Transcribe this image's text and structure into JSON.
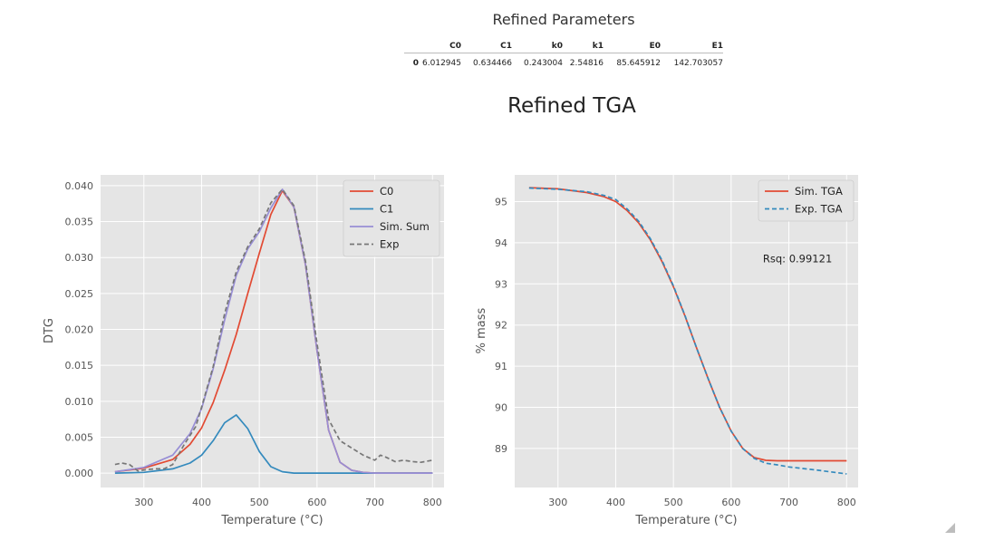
{
  "table": {
    "caption": "Refined Parameters",
    "columns": [
      "",
      "C0",
      "C1",
      "k0",
      "k1",
      "E0",
      "E1"
    ],
    "rows": [
      [
        "0",
        "6.012945",
        "0.634466",
        "0.243004",
        "2.54816",
        "85.645912",
        "142.703057"
      ]
    ]
  },
  "figure_title": "Refined TGA",
  "chart_data": [
    {
      "type": "line",
      "xlabel": "Temperature ($^\\circ$C)",
      "ylabel": "DTG",
      "xlim": [
        225,
        820
      ],
      "ylim": [
        -0.002,
        0.0415
      ],
      "xticks": [
        "300",
        "400",
        "500",
        "600",
        "700",
        "800"
      ],
      "yticks": [
        "0.000",
        "0.005",
        "0.010",
        "0.015",
        "0.020",
        "0.025",
        "0.030",
        "0.035",
        "0.040"
      ],
      "grid": true,
      "legend_position": "top-right",
      "series": [
        {
          "name": "C0",
          "color": "#e24a33",
          "style": "solid",
          "x": [
            250,
            300,
            350,
            380,
            400,
            420,
            440,
            460,
            480,
            500,
            520,
            540,
            560,
            580,
            600,
            620,
            640,
            660,
            680,
            700,
            750,
            800
          ],
          "y": [
            0.0002,
            0.0007,
            0.0019,
            0.004,
            0.0063,
            0.0098,
            0.0143,
            0.0193,
            0.025,
            0.0306,
            0.036,
            0.0393,
            0.037,
            0.029,
            0.017,
            0.006,
            0.0015,
            0.0004,
            0.0001,
            0.0,
            0.0,
            0.0
          ]
        },
        {
          "name": "C1",
          "color": "#348abd",
          "style": "solid",
          "x": [
            250,
            300,
            350,
            380,
            400,
            420,
            440,
            460,
            480,
            500,
            520,
            540,
            560,
            600,
            700,
            800
          ],
          "y": [
            0.0,
            0.0001,
            0.0006,
            0.0014,
            0.0025,
            0.0045,
            0.007,
            0.0081,
            0.0062,
            0.003,
            0.0009,
            0.0002,
            0.0,
            0.0,
            0.0,
            0.0
          ]
        },
        {
          "name": "Sim. Sum",
          "color": "#988ed5",
          "style": "solid",
          "x": [
            250,
            300,
            350,
            380,
            400,
            420,
            440,
            460,
            480,
            500,
            520,
            540,
            560,
            580,
            600,
            620,
            640,
            660,
            680,
            700,
            750,
            800
          ],
          "y": [
            0.0002,
            0.0008,
            0.0025,
            0.0055,
            0.009,
            0.0145,
            0.0213,
            0.0275,
            0.0312,
            0.0336,
            0.0369,
            0.0395,
            0.037,
            0.029,
            0.017,
            0.006,
            0.0015,
            0.0004,
            0.0001,
            0.0,
            0.0,
            0.0
          ]
        },
        {
          "name": "Exp",
          "color": "#777777",
          "style": "dashed",
          "x": [
            250,
            262,
            275,
            290,
            305,
            320,
            335,
            350,
            370,
            390,
            400,
            420,
            440,
            460,
            480,
            500,
            520,
            540,
            560,
            580,
            600,
            620,
            640,
            660,
            680,
            700,
            710,
            720,
            735,
            750,
            765,
            780,
            800
          ],
          "y": [
            0.0012,
            0.0014,
            0.0012,
            0.0003,
            0.0005,
            0.0006,
            0.0006,
            0.0012,
            0.004,
            0.0065,
            0.0092,
            0.0148,
            0.0222,
            0.028,
            0.0315,
            0.034,
            0.0376,
            0.0395,
            0.0372,
            0.0295,
            0.018,
            0.0075,
            0.0045,
            0.0035,
            0.0025,
            0.0018,
            0.0025,
            0.0022,
            0.0016,
            0.0018,
            0.0016,
            0.0015,
            0.0018
          ]
        }
      ]
    },
    {
      "type": "line",
      "xlabel": "Temperature ($^\\circ$C)",
      "ylabel": "% mass",
      "xlim": [
        225,
        820
      ],
      "ylim": [
        88.05,
        95.65
      ],
      "xticks": [
        "300",
        "400",
        "500",
        "600",
        "700",
        "800"
      ],
      "yticks": [
        "89",
        "90",
        "91",
        "92",
        "93",
        "94",
        "95"
      ],
      "grid": true,
      "legend_position": "top-right",
      "annotation": "Rsq: 0.99121",
      "series": [
        {
          "name": "Sim. TGA",
          "color": "#e24a33",
          "style": "solid",
          "x": [
            250,
            300,
            350,
            380,
            400,
            420,
            440,
            460,
            480,
            500,
            520,
            540,
            560,
            580,
            600,
            620,
            640,
            660,
            680,
            700,
            750,
            800
          ],
          "y": [
            95.34,
            95.31,
            95.22,
            95.12,
            95.0,
            94.78,
            94.48,
            94.07,
            93.55,
            92.93,
            92.22,
            91.45,
            90.7,
            90.0,
            89.42,
            89.0,
            88.78,
            88.71,
            88.7,
            88.7,
            88.7,
            88.7
          ]
        },
        {
          "name": "Exp. TGA",
          "color": "#348abd",
          "style": "dashed",
          "x": [
            250,
            300,
            350,
            380,
            400,
            420,
            440,
            460,
            480,
            500,
            520,
            540,
            560,
            580,
            600,
            620,
            640,
            660,
            680,
            700,
            750,
            800
          ],
          "y": [
            95.33,
            95.3,
            95.24,
            95.15,
            95.05,
            94.82,
            94.52,
            94.1,
            93.58,
            92.95,
            92.23,
            91.45,
            90.7,
            90.0,
            89.42,
            89.0,
            88.76,
            88.64,
            88.6,
            88.55,
            88.47,
            88.38
          ]
        }
      ]
    }
  ]
}
